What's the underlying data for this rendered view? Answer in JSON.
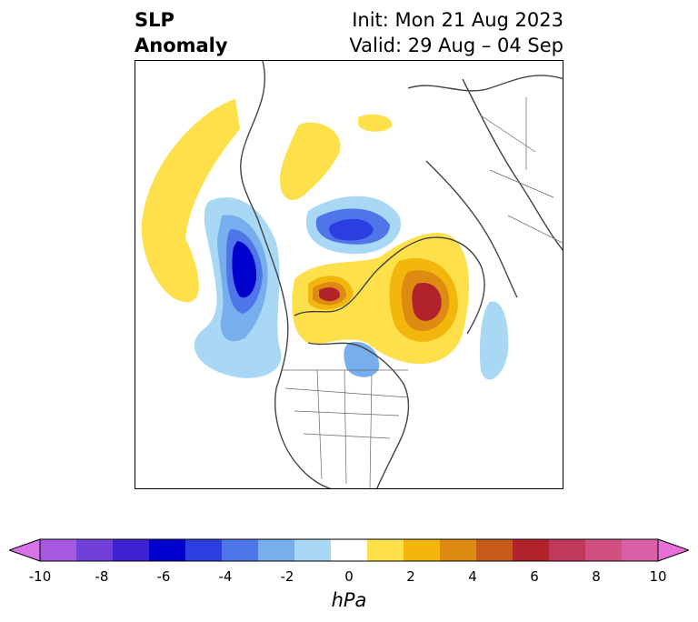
{
  "title": {
    "left_line1": "SLP",
    "left_line2": "Anomaly",
    "right_line1": "Init: Mon 21 Aug 2023",
    "right_line2": "Valid: 29 Aug – 04 Sep"
  },
  "colorbar": {
    "units": "hPa",
    "ticks": [
      "-10",
      "-8",
      "-6",
      "-4",
      "-2",
      "0",
      "2",
      "4",
      "6",
      "8",
      "10"
    ],
    "colors": [
      "#d773e6",
      "#a459e0",
      "#7040d8",
      "#3d22d0",
      "#0000cc",
      "#2b3ee0",
      "#4f76e8",
      "#76aeee",
      "#a9d8f5",
      "#ffffff",
      "#fde04a",
      "#f2b60c",
      "#de8b14",
      "#c55a1c",
      "#b2222a",
      "#c2385a",
      "#d0507f",
      "#d95fa6",
      "#e670d6"
    ]
  },
  "map": {
    "colors": {
      "land_outline": "#444444",
      "neg_light": "#a9d8f5",
      "neg_mid": "#76aeee",
      "neg_strong": "#4f76e8",
      "neg_deep": "#0000cc",
      "pos_light": "#fde04a",
      "pos_mid": "#f2b60c",
      "pos_strong": "#de8b14",
      "pos_deep": "#b2222a"
    }
  }
}
